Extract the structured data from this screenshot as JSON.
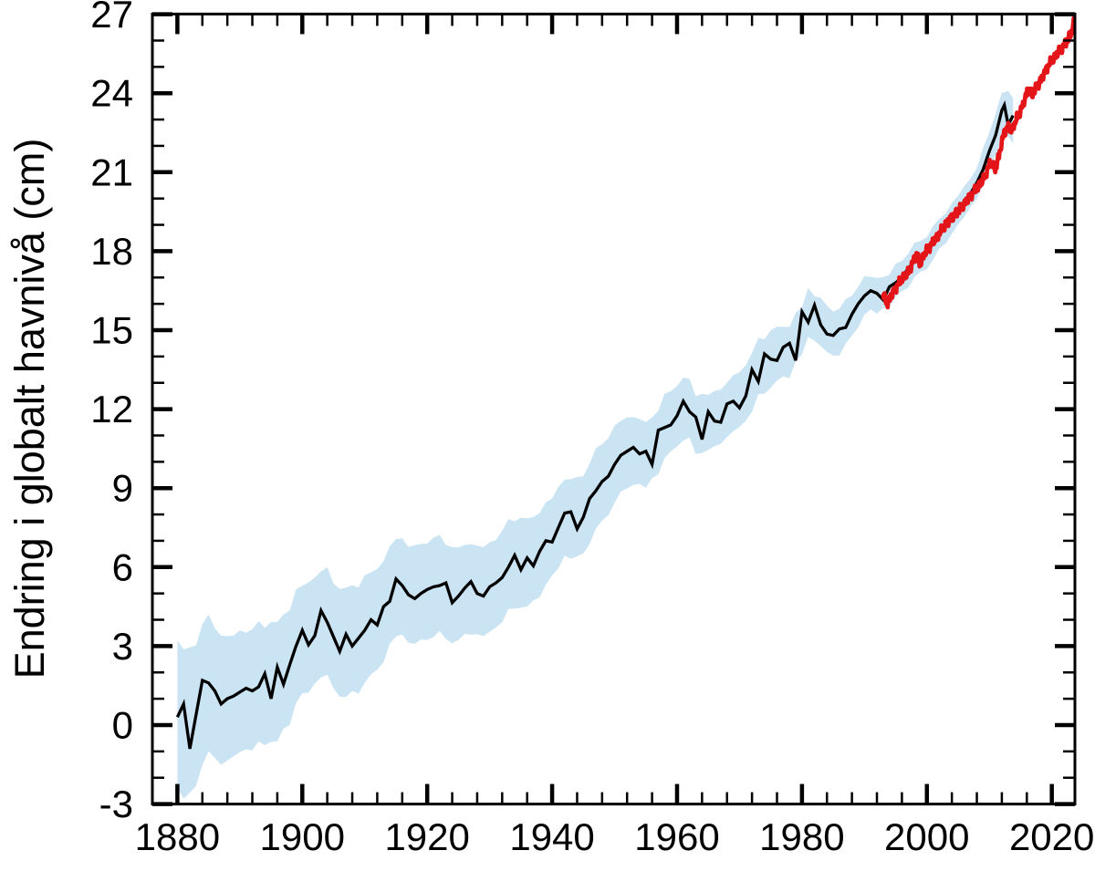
{
  "chart_data": {
    "type": "line",
    "title": "",
    "xlabel": "",
    "ylabel": "Endring i globalt havnivå (cm)",
    "xlim": [
      1876,
      2023.7
    ],
    "ylim": [
      -3,
      27
    ],
    "grid": false,
    "legend": "none",
    "x_major_ticks": [
      1880,
      1900,
      1920,
      1940,
      1960,
      1980,
      2000,
      2020
    ],
    "x_tick_labels": [
      "1880",
      "1900",
      "1920",
      "1940",
      "1960",
      "1980",
      "2000",
      "2020"
    ],
    "x_minor_step": 4,
    "y_major_ticks": [
      -3,
      0,
      3,
      6,
      9,
      12,
      15,
      18,
      21,
      24,
      27
    ],
    "y_tick_labels": [
      "-3",
      "0",
      "3",
      "6",
      "9",
      "12",
      "15",
      "18",
      "21",
      "24",
      "27"
    ],
    "y_minor_step": 1,
    "colors": {
      "tide_gauge_line": "#000000",
      "uncertainty_band": "#cae4f3",
      "satellite_line": "#e41518",
      "axis": "#000000"
    },
    "series": [
      {
        "name": "tide-gauge-annual",
        "color": "#000000",
        "values": [
          [
            1880,
            0.3
          ],
          [
            1881,
            0.8
          ],
          [
            1882,
            -0.9
          ],
          [
            1883,
            0.4
          ],
          [
            1884,
            1.7
          ],
          [
            1885,
            1.6
          ],
          [
            1886,
            1.3
          ],
          [
            1887,
            0.8
          ],
          [
            1888,
            1.0
          ],
          [
            1889,
            1.1
          ],
          [
            1890,
            1.25
          ],
          [
            1891,
            1.4
          ],
          [
            1892,
            1.3
          ],
          [
            1893,
            1.45
          ],
          [
            1894,
            1.95
          ],
          [
            1895,
            1.0
          ],
          [
            1896,
            2.2
          ],
          [
            1897,
            1.55
          ],
          [
            1898,
            2.3
          ],
          [
            1899,
            3.0
          ],
          [
            1900,
            3.6
          ],
          [
            1901,
            3.05
          ],
          [
            1902,
            3.4
          ],
          [
            1903,
            4.35
          ],
          [
            1904,
            3.9
          ],
          [
            1905,
            3.35
          ],
          [
            1906,
            2.8
          ],
          [
            1907,
            3.45
          ],
          [
            1908,
            3.0
          ],
          [
            1909,
            3.3
          ],
          [
            1910,
            3.6
          ],
          [
            1911,
            4.0
          ],
          [
            1912,
            3.8
          ],
          [
            1913,
            4.5
          ],
          [
            1914,
            4.7
          ],
          [
            1915,
            5.55
          ],
          [
            1916,
            5.3
          ],
          [
            1917,
            4.95
          ],
          [
            1918,
            4.8
          ],
          [
            1919,
            5.0
          ],
          [
            1920,
            5.15
          ],
          [
            1921,
            5.25
          ],
          [
            1922,
            5.3
          ],
          [
            1923,
            5.4
          ],
          [
            1924,
            4.65
          ],
          [
            1925,
            4.9
          ],
          [
            1926,
            5.2
          ],
          [
            1927,
            5.45
          ],
          [
            1928,
            5.0
          ],
          [
            1929,
            4.9
          ],
          [
            1930,
            5.25
          ],
          [
            1931,
            5.4
          ],
          [
            1932,
            5.6
          ],
          [
            1933,
            6.0
          ],
          [
            1934,
            6.45
          ],
          [
            1935,
            5.9
          ],
          [
            1936,
            6.35
          ],
          [
            1937,
            6.05
          ],
          [
            1938,
            6.6
          ],
          [
            1939,
            7.0
          ],
          [
            1940,
            6.95
          ],
          [
            1941,
            7.5
          ],
          [
            1942,
            8.05
          ],
          [
            1943,
            8.1
          ],
          [
            1944,
            7.45
          ],
          [
            1945,
            7.9
          ],
          [
            1946,
            8.6
          ],
          [
            1947,
            8.9
          ],
          [
            1948,
            9.25
          ],
          [
            1949,
            9.45
          ],
          [
            1950,
            9.9
          ],
          [
            1951,
            10.25
          ],
          [
            1952,
            10.4
          ],
          [
            1953,
            10.55
          ],
          [
            1954,
            10.3
          ],
          [
            1955,
            10.4
          ],
          [
            1956,
            9.9
          ],
          [
            1957,
            11.2
          ],
          [
            1958,
            11.3
          ],
          [
            1959,
            11.4
          ],
          [
            1960,
            11.75
          ],
          [
            1961,
            12.3
          ],
          [
            1962,
            11.9
          ],
          [
            1963,
            11.7
          ],
          [
            1964,
            10.85
          ],
          [
            1965,
            11.9
          ],
          [
            1966,
            11.55
          ],
          [
            1967,
            11.5
          ],
          [
            1968,
            12.2
          ],
          [
            1969,
            12.3
          ],
          [
            1970,
            12.05
          ],
          [
            1971,
            12.5
          ],
          [
            1972,
            13.5
          ],
          [
            1973,
            13.05
          ],
          [
            1974,
            14.1
          ],
          [
            1975,
            13.9
          ],
          [
            1976,
            13.85
          ],
          [
            1977,
            14.35
          ],
          [
            1978,
            14.5
          ],
          [
            1979,
            13.85
          ],
          [
            1980,
            15.7
          ],
          [
            1981,
            15.3
          ],
          [
            1982,
            15.95
          ],
          [
            1983,
            15.2
          ],
          [
            1984,
            14.85
          ],
          [
            1985,
            14.8
          ],
          [
            1986,
            15.05
          ],
          [
            1987,
            15.1
          ],
          [
            1988,
            15.6
          ],
          [
            1989,
            16.0
          ],
          [
            1990,
            16.3
          ],
          [
            1991,
            16.5
          ],
          [
            1992,
            16.4
          ],
          [
            1993,
            16.15
          ],
          [
            1994,
            16.65
          ],
          [
            1995,
            16.8
          ],
          [
            1996,
            17.0
          ],
          [
            1997,
            17.35
          ],
          [
            1998,
            17.6
          ],
          [
            1999,
            17.8
          ],
          [
            2000,
            17.95
          ],
          [
            2001,
            18.3
          ],
          [
            2002,
            18.6
          ],
          [
            2003,
            19.0
          ],
          [
            2004,
            19.25
          ],
          [
            2005,
            19.5
          ],
          [
            2006,
            19.9
          ],
          [
            2007,
            20.2
          ],
          [
            2008,
            20.6
          ],
          [
            2009,
            21.1
          ],
          [
            2010,
            21.8
          ],
          [
            2011,
            22.4
          ],
          [
            2012,
            23.35
          ],
          [
            2012.4,
            23.55
          ],
          [
            2013,
            22.8
          ],
          [
            2013.8,
            23.15
          ]
        ]
      },
      {
        "name": "satellite-monthly",
        "color": "#e41518",
        "anchors": [
          [
            1993.0,
            16.35
          ],
          [
            1993.6,
            16.0
          ],
          [
            1994.3,
            16.3
          ],
          [
            1995.0,
            16.6
          ],
          [
            1996.0,
            16.95
          ],
          [
            1997.0,
            17.2
          ],
          [
            1997.8,
            17.6
          ],
          [
            1998.3,
            17.9
          ],
          [
            1998.9,
            17.5
          ],
          [
            1999.6,
            17.9
          ],
          [
            2000.5,
            18.2
          ],
          [
            2001.5,
            18.5
          ],
          [
            2002.5,
            18.85
          ],
          [
            2003.5,
            19.15
          ],
          [
            2004.5,
            19.4
          ],
          [
            2005.5,
            19.65
          ],
          [
            2006.5,
            19.95
          ],
          [
            2007.5,
            20.25
          ],
          [
            2008.5,
            20.55
          ],
          [
            2009.3,
            20.85
          ],
          [
            2010.2,
            21.4
          ],
          [
            2011.0,
            21.1
          ],
          [
            2011.7,
            21.8
          ],
          [
            2012.4,
            22.55
          ],
          [
            2013.0,
            22.7
          ],
          [
            2013.6,
            22.6
          ],
          [
            2014.5,
            23.1
          ],
          [
            2015.3,
            23.5
          ],
          [
            2016.2,
            24.15
          ],
          [
            2016.9,
            23.95
          ],
          [
            2017.6,
            24.25
          ],
          [
            2018.4,
            24.55
          ],
          [
            2019.3,
            25.0
          ],
          [
            2020.2,
            25.3
          ],
          [
            2021.0,
            25.55
          ],
          [
            2021.9,
            25.8
          ],
          [
            2022.6,
            26.05
          ],
          [
            2023.2,
            26.35
          ],
          [
            2023.7,
            26.9
          ]
        ]
      }
    ],
    "uncertainty_band": {
      "around": "tide-gauge-annual",
      "color": "#cae4f3",
      "halfwidth_anchors": [
        [
          1880,
          2.7
        ],
        [
          1890,
          2.2
        ],
        [
          1900,
          2.0
        ],
        [
          1910,
          1.85
        ],
        [
          1920,
          1.7
        ],
        [
          1930,
          1.6
        ],
        [
          1940,
          1.45
        ],
        [
          1950,
          1.3
        ],
        [
          1960,
          1.0
        ],
        [
          1970,
          0.95
        ],
        [
          1980,
          0.85
        ],
        [
          1990,
          0.6
        ],
        [
          2000,
          0.45
        ],
        [
          2008,
          0.5
        ],
        [
          2012,
          0.7
        ],
        [
          2013.8,
          0.75
        ]
      ]
    }
  },
  "axes": {
    "y_axis_title": "Endring i globalt havnivå (cm)"
  }
}
